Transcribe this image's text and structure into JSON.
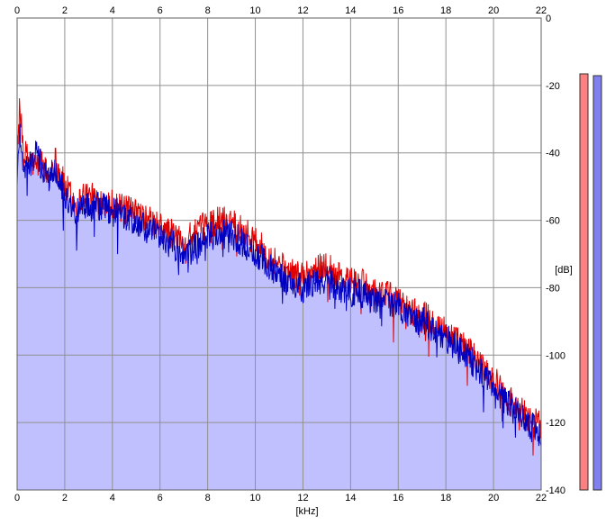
{
  "chart_data": {
    "type": "area",
    "xlabel": "[kHz]",
    "ylabel": "[dB]",
    "xlim": [
      0,
      22
    ],
    "ylim": [
      -140,
      0
    ],
    "x_ticks": [
      {
        "value": 0,
        "label": "0"
      },
      {
        "value": 2,
        "label": "2"
      },
      {
        "value": 4,
        "label": "4"
      },
      {
        "value": 6,
        "label": "6"
      },
      {
        "value": 8,
        "label": "8"
      },
      {
        "value": 10,
        "label": "10"
      },
      {
        "value": 12,
        "label": "12"
      },
      {
        "value": 14,
        "label": "14"
      },
      {
        "value": 16,
        "label": "16"
      },
      {
        "value": 18,
        "label": "18"
      },
      {
        "value": 20,
        "label": "20"
      },
      {
        "value": 22,
        "label": "22"
      }
    ],
    "y_ticks": [
      {
        "value": 0,
        "label": "0"
      },
      {
        "value": -20,
        "label": "-20"
      },
      {
        "value": -40,
        "label": "-40"
      },
      {
        "value": -60,
        "label": "-60"
      },
      {
        "value": -80,
        "label": "-80"
      },
      {
        "value": -100,
        "label": "-100"
      },
      {
        "value": -120,
        "label": "-120"
      },
      {
        "value": -140,
        "label": "-140"
      }
    ],
    "grid": true,
    "series": [
      {
        "color": "#e00000",
        "x": [
          0,
          0.1,
          0.3,
          0.5,
          0.8,
          1.0,
          1.3,
          1.6,
          1.8,
          2.0,
          2.2,
          2.5,
          2.8,
          3.0,
          3.5,
          4.0,
          4.5,
          5.0,
          5.5,
          6.0,
          6.5,
          7.0,
          7.5,
          8.0,
          8.5,
          9.0,
          9.5,
          10.0,
          10.5,
          11.0,
          11.5,
          12.0,
          12.5,
          13.0,
          13.5,
          14.0,
          14.5,
          15.0,
          15.5,
          16.0,
          16.5,
          17.0,
          17.5,
          18.0,
          18.5,
          19.0,
          19.5,
          20.0,
          20.5,
          21.0,
          21.5,
          22.0
        ],
        "y": [
          -38,
          -28,
          -40,
          -42,
          -44,
          -42,
          -47,
          -42,
          -46,
          -50,
          -52,
          -56,
          -52,
          -53,
          -54,
          -55,
          -57,
          -58,
          -60,
          -62,
          -64,
          -66,
          -64,
          -61,
          -60,
          -60,
          -63,
          -66,
          -70,
          -73,
          -76,
          -76,
          -75,
          -73,
          -77,
          -78,
          -79,
          -81,
          -82,
          -84,
          -87,
          -88,
          -90,
          -93,
          -96,
          -99,
          -103,
          -107,
          -112,
          -115,
          -119,
          -121
        ]
      },
      {
        "color": "#0000c0",
        "x": [
          0,
          0.1,
          0.3,
          0.5,
          0.8,
          1.0,
          1.3,
          1.6,
          1.8,
          2.0,
          2.2,
          2.5,
          2.8,
          3.0,
          3.5,
          4.0,
          4.5,
          5.0,
          5.5,
          6.0,
          6.5,
          7.0,
          7.5,
          8.0,
          8.5,
          9.0,
          9.5,
          10.0,
          10.5,
          11.0,
          11.5,
          12.0,
          12.5,
          13.0,
          13.5,
          14.0,
          14.5,
          15.0,
          15.5,
          16.0,
          16.5,
          17.0,
          17.5,
          18.0,
          18.5,
          19.0,
          19.5,
          20.0,
          20.5,
          21.0,
          21.5,
          22.0
        ],
        "y": [
          -50,
          -32,
          -46,
          -44,
          -40,
          -44,
          -48,
          -44,
          -47,
          -53,
          -54,
          -58,
          -55,
          -56,
          -56,
          -57,
          -59,
          -61,
          -63,
          -65,
          -67,
          -70,
          -68,
          -65,
          -64,
          -64,
          -67,
          -70,
          -73,
          -76,
          -79,
          -80,
          -79,
          -77,
          -80,
          -81,
          -82,
          -83,
          -84,
          -86,
          -89,
          -90,
          -92,
          -95,
          -98,
          -101,
          -105,
          -109,
          -114,
          -117,
          -121,
          -123
        ]
      }
    ],
    "level_meters": [
      {
        "color": "#ff8080"
      },
      {
        "color": "#8080ee"
      }
    ],
    "fill_color": "#c0c0ff"
  }
}
